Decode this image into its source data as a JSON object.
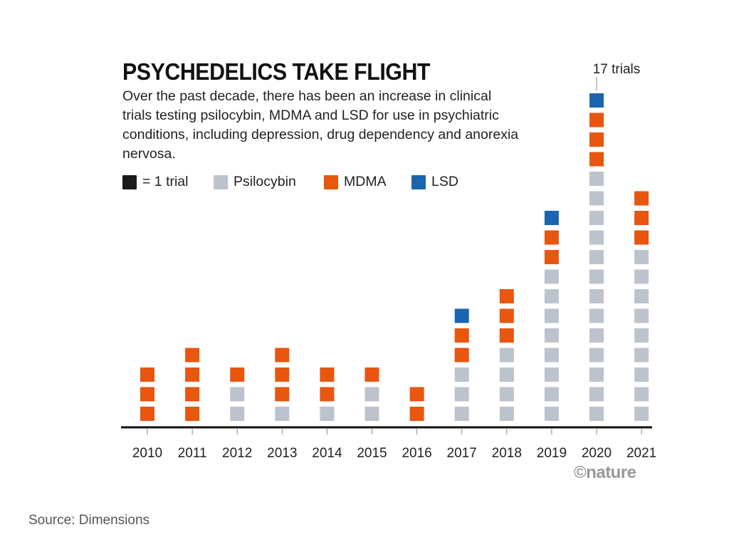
{
  "chart_data": {
    "type": "bar",
    "stacked": true,
    "unit_chart": true,
    "title": "PSYCHEDELICS TAKE FLIGHT",
    "subtitle": "Over the past decade, there has been an increase in clinical trials testing psilocybin, MDMA and LSD for use in psychiatric conditions, including depression, drug dependency and anorexia nervosa.",
    "unit_legend": "= 1 trial",
    "categories": [
      "2010",
      "2011",
      "2012",
      "2013",
      "2014",
      "2015",
      "2016",
      "2017",
      "2018",
      "2019",
      "2020",
      "2021"
    ],
    "series": [
      {
        "name": "Psilocybin",
        "color": "#bcc3cd",
        "values": [
          0,
          0,
          2,
          1,
          1,
          2,
          0,
          3,
          4,
          8,
          13,
          9
        ]
      },
      {
        "name": "MDMA",
        "color": "#e8560f",
        "values": [
          3,
          4,
          1,
          3,
          2,
          1,
          2,
          2,
          3,
          2,
          3,
          3
        ]
      },
      {
        "name": "LSD",
        "color": "#1a64b0",
        "values": [
          0,
          0,
          0,
          0,
          0,
          0,
          0,
          1,
          0,
          1,
          1,
          0
        ]
      }
    ],
    "annotation": {
      "category": "2020",
      "text": "17 trials"
    },
    "xlabel": "",
    "ylabel": "",
    "grid": false,
    "legend_placement": "top-left"
  },
  "source": "Source: Dimensions",
  "brand": "©nature"
}
